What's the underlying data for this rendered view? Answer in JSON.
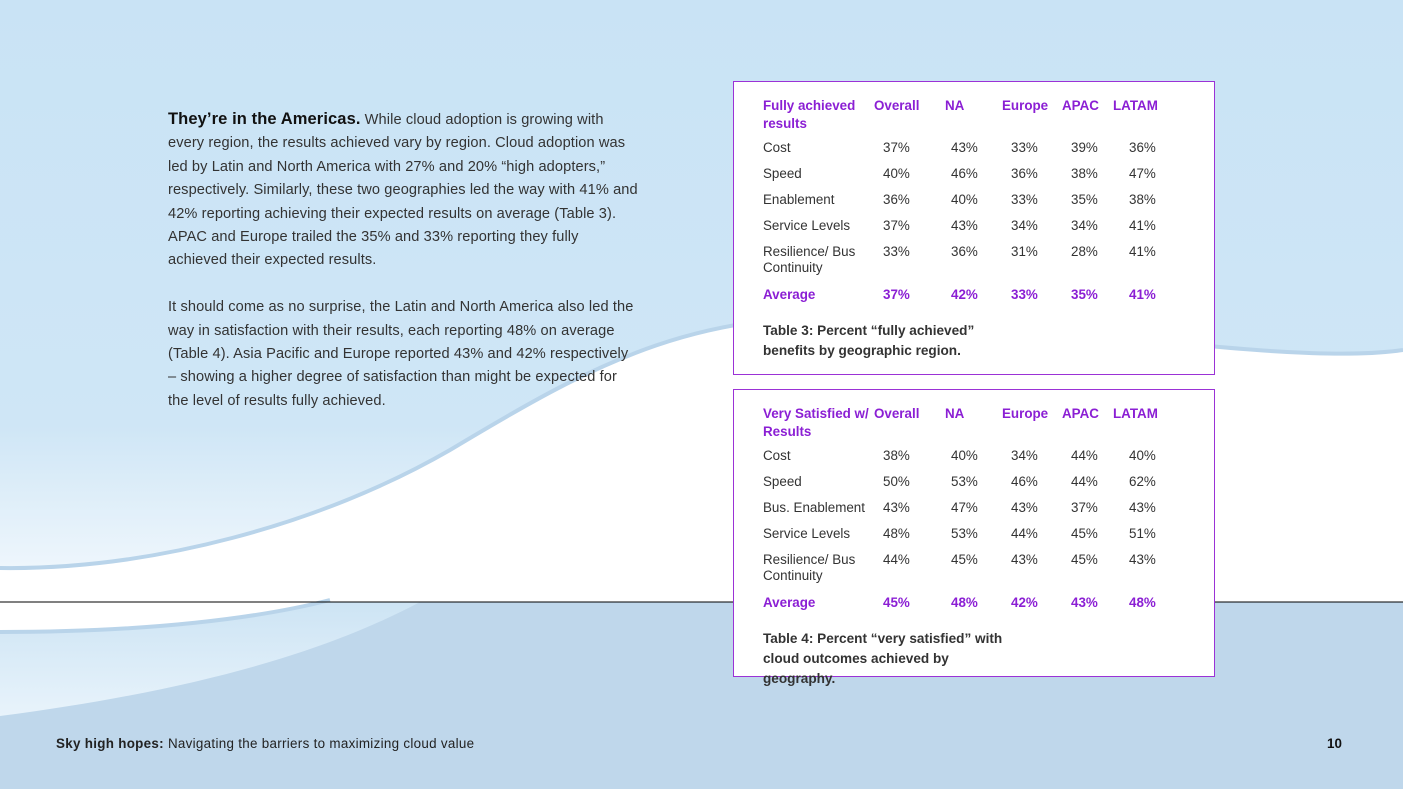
{
  "intro": {
    "lead": "They’re in the Americas.",
    "para1": " While cloud adoption is growing with every region, the results achieved vary by region. Cloud adoption was led by Latin and North America with 27% and 20% “high adopters,” respectively. Similarly, these two geographies led the way with 41% and 42% reporting achieving their expected results on average (Table 3). APAC and Europe trailed the 35% and 33% reporting they fully achieved their expected results.",
    "para2": "It should come as no surprise, the Latin and North America also led the way in satisfaction with their results, each reporting 48% on average (Table 4).  Asia Pacific and Europe reported 43% and 42% respectively – showing a higher degree of satisfaction than might be expected for the level of results fully achieved."
  },
  "colors": {
    "accent": "#8b1fd4",
    "border": "#9b32d6",
    "sky": "#c9e3f5",
    "band": "#bfd7eb"
  },
  "tables": [
    {
      "headers": [
        "Fully achieved results",
        "Overall",
        "NA",
        "Europe",
        "APAC",
        "LATAM"
      ],
      "rows": [
        [
          "Cost",
          "37%",
          "43%",
          "33%",
          "39%",
          "36%"
        ],
        [
          "Speed",
          "40%",
          "46%",
          "36%",
          "38%",
          "47%"
        ],
        [
          "Enablement",
          "36%",
          "40%",
          "33%",
          "35%",
          "38%"
        ],
        [
          "Service Levels",
          "37%",
          "43%",
          "34%",
          "34%",
          "41%"
        ],
        [
          "Resilience/ Bus Continuity",
          "33%",
          "36%",
          "31%",
          "28%",
          "41%"
        ]
      ],
      "average": [
        "Average",
        "37%",
        "42%",
        "33%",
        "35%",
        "41%"
      ],
      "caption": "Table 3: Percent “fully achieved” benefits by geographic region."
    },
    {
      "headers": [
        "Very Satisfied w/ Results",
        "Overall",
        "NA",
        "Europe",
        "APAC",
        "LATAM"
      ],
      "rows": [
        [
          "Cost",
          "38%",
          "40%",
          "34%",
          "44%",
          "40%"
        ],
        [
          "Speed",
          "50%",
          "53%",
          "46%",
          "44%",
          "62%"
        ],
        [
          "Bus. Enablement",
          "43%",
          "47%",
          "43%",
          "37%",
          "43%"
        ],
        [
          "Service Levels",
          "48%",
          "53%",
          "44%",
          "45%",
          "51%"
        ],
        [
          "Resilience/ Bus Continuity",
          "44%",
          "45%",
          "43%",
          "45%",
          "43%"
        ]
      ],
      "average": [
        "Average",
        "45%",
        "48%",
        "42%",
        "43%",
        "48%"
      ],
      "caption": "Table 4: Percent “very satisfied” with cloud outcomes achieved by geography."
    }
  ],
  "footer": {
    "title_bold": "Sky high hopes:",
    "title_rest": " Navigating the barriers to maximizing cloud value",
    "page_number": "10"
  }
}
